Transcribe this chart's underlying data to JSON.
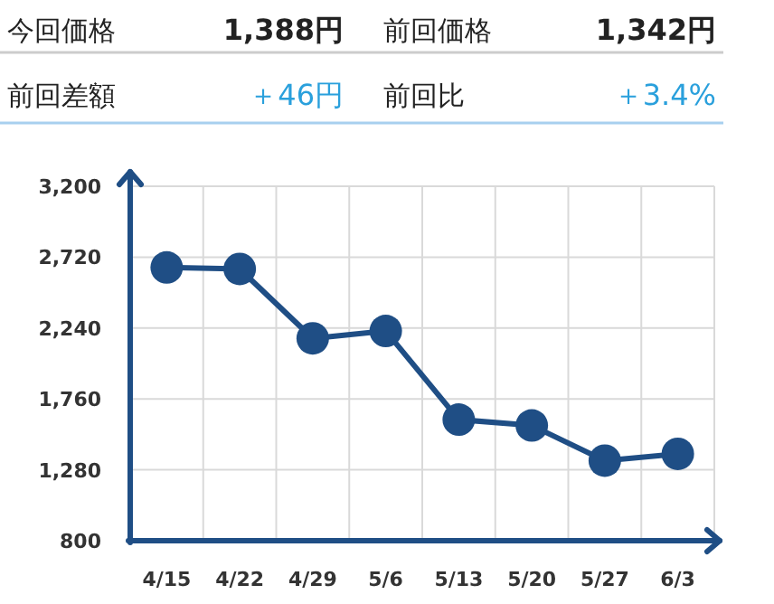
{
  "chart_data": [
    {
      "type": "other",
      "annotations": [
        "今回価格",
        "1,388円",
        "前回価格",
        "1,342円",
        "前回差額",
        "＋46円",
        "前回比",
        "＋3.4%"
      ]
    },
    {
      "type": "line",
      "categories": [
        "4/15",
        "4/22",
        "4/29",
        "5/6",
        "5/13",
        "5/20",
        "5/27",
        "6/3"
      ],
      "values": [
        2650,
        2640,
        2170,
        2220,
        1620,
        1580,
        1342,
        1388
      ],
      "color": "#1f4e85",
      "ylim": [
        800,
        3200
      ],
      "yticks": [
        800,
        {
          "value": 1280,
          "label": "1,280"
        },
        {
          "value": 1760,
          "label": "1,760"
        },
        {
          "value": 2240,
          "label": "2,240"
        },
        {
          "value": 2720,
          "label": "2,720"
        },
        {
          "value": 3200,
          "label": "3,200"
        }
      ],
      "grid": true,
      "marker": "circle",
      "line_style": "solid"
    }
  ]
}
